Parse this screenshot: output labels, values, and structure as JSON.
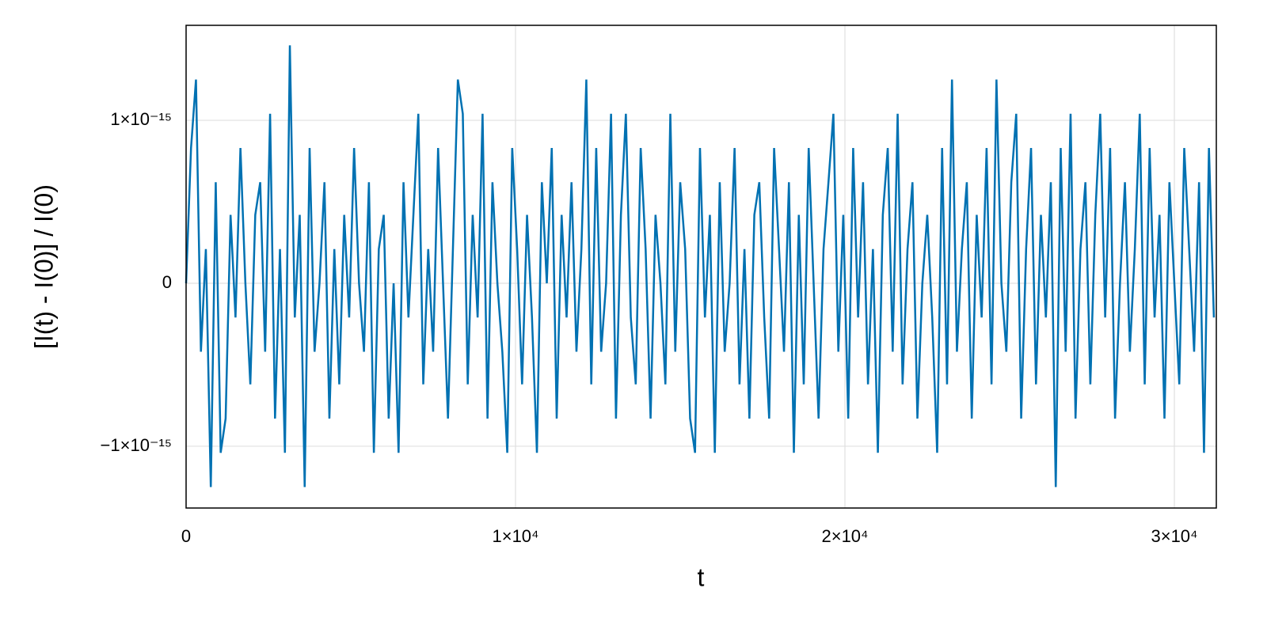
{
  "chart_data": {
    "type": "line",
    "xlabel": "t",
    "ylabel": "[I(t) - I(0)] / I(0)",
    "xlim": [
      0,
      31274
    ],
    "ylim": [
      -1.379e-15,
      1.583e-15
    ],
    "xticks": [
      0,
      {
        "value": 10000,
        "label": "1×10⁴"
      },
      {
        "value": 20000,
        "label": "2×10⁴"
      },
      {
        "value": 30000,
        "label": "3×10⁴"
      }
    ],
    "yticks": [
      {
        "value": -1e-15,
        "label": "−1×10⁻¹⁵"
      },
      0,
      {
        "value": 1e-15,
        "label": "1×10⁻¹⁵"
      }
    ],
    "grid": true,
    "x": [
      0,
      150,
      300,
      450,
      600,
      750,
      900,
      1050,
      1200,
      1350,
      1500,
      1650,
      1800,
      1950,
      2100,
      2250,
      2400,
      2550,
      2700,
      2850,
      3000,
      3150,
      3300,
      3450,
      3600,
      3750,
      3900,
      4050,
      4200,
      4350,
      4500,
      4650,
      4800,
      4950,
      5100,
      5250,
      5400,
      5550,
      5700,
      5850,
      6000,
      6150,
      6300,
      6450,
      6600,
      6750,
      6900,
      7050,
      7200,
      7350,
      7500,
      7650,
      7800,
      7950,
      8100,
      8250,
      8400,
      8550,
      8700,
      8850,
      9000,
      9150,
      9300,
      9450,
      9600,
      9750,
      9900,
      10050,
      10200,
      10350,
      10500,
      10650,
      10800,
      10950,
      11100,
      11250,
      11400,
      11550,
      11700,
      11850,
      12000,
      12150,
      12300,
      12450,
      12600,
      12750,
      12900,
      13050,
      13200,
      13350,
      13500,
      13650,
      13800,
      13950,
      14100,
      14250,
      14400,
      14550,
      14700,
      14850,
      15000,
      15150,
      15300,
      15450,
      15600,
      15750,
      15900,
      16050,
      16200,
      16350,
      16500,
      16650,
      16800,
      16950,
      17100,
      17250,
      17400,
      17550,
      17700,
      17850,
      18000,
      18150,
      18300,
      18450,
      18600,
      18750,
      18900,
      19050,
      19200,
      19350,
      19500,
      19650,
      19800,
      19950,
      20100,
      20250,
      20400,
      20550,
      20700,
      20850,
      21000,
      21150,
      21300,
      21450,
      21600,
      21750,
      21900,
      22050,
      22200,
      22350,
      22500,
      22650,
      22800,
      22950,
      23100,
      23250,
      23400,
      23550,
      23700,
      23850,
      24000,
      24150,
      24300,
      24450,
      24600,
      24750,
      24900,
      25050,
      25200,
      25350,
      25500,
      25650,
      25800,
      25950,
      26100,
      26250,
      26400,
      26550,
      26700,
      26850,
      27000,
      27150,
      27300,
      27450,
      27600,
      27750,
      27900,
      28050,
      28200,
      28350,
      28500,
      28650,
      28800,
      28950,
      29100,
      29250,
      29400,
      29550,
      29700,
      29850,
      30000,
      30150,
      30300,
      30450,
      30600,
      30750,
      30900,
      31050,
      31200
    ],
    "series": [
      {
        "color": "#0071b2",
        "values": [
          0,
          8.3e-16,
          1.25e-15,
          -4.2e-16,
          2.1e-16,
          -1.25e-15,
          6.2e-16,
          -1.04e-15,
          -8.3e-16,
          4.2e-16,
          -2.1e-16,
          8.3e-16,
          0,
          -6.2e-16,
          4.2e-16,
          6.2e-16,
          -4.2e-16,
          1.04e-15,
          -8.3e-16,
          2.1e-16,
          -1.04e-15,
          1.46e-15,
          -2.1e-16,
          4.2e-16,
          -1.25e-15,
          8.3e-16,
          -4.2e-16,
          0,
          6.2e-16,
          -8.3e-16,
          2.1e-16,
          -6.2e-16,
          4.2e-16,
          -2.1e-16,
          8.3e-16,
          0,
          -4.2e-16,
          6.2e-16,
          -1.04e-15,
          2.1e-16,
          4.2e-16,
          -8.3e-16,
          0,
          -1.04e-15,
          6.2e-16,
          -2.1e-16,
          4.2e-16,
          1.04e-15,
          -6.2e-16,
          2.1e-16,
          -4.2e-16,
          8.3e-16,
          0,
          -8.3e-16,
          2.1e-16,
          1.25e-15,
          1.04e-15,
          -6.2e-16,
          4.2e-16,
          -2.1e-16,
          1.04e-15,
          -8.3e-16,
          6.2e-16,
          0,
          -4.2e-16,
          -1.04e-15,
          8.3e-16,
          2.1e-16,
          -6.2e-16,
          4.2e-16,
          -2.1e-16,
          -1.04e-15,
          6.2e-16,
          0,
          8.3e-16,
          -8.3e-16,
          4.2e-16,
          -2.1e-16,
          6.2e-16,
          -4.2e-16,
          2.1e-16,
          1.25e-15,
          -6.2e-16,
          8.3e-16,
          -4.2e-16,
          0,
          1.04e-15,
          -8.3e-16,
          4.2e-16,
          1.04e-15,
          -2.1e-16,
          -6.2e-16,
          8.3e-16,
          2.1e-16,
          -8.3e-16,
          4.2e-16,
          0,
          -6.2e-16,
          1.04e-15,
          -4.2e-16,
          6.2e-16,
          2.1e-16,
          -8.3e-16,
          -1.04e-15,
          8.3e-16,
          -2.1e-16,
          4.2e-16,
          -1.04e-15,
          6.2e-16,
          -4.2e-16,
          0,
          8.3e-16,
          -6.2e-16,
          2.1e-16,
          -8.3e-16,
          4.2e-16,
          6.2e-16,
          -2.1e-16,
          -8.3e-16,
          8.3e-16,
          2.1e-16,
          -4.2e-16,
          6.2e-16,
          -1.04e-15,
          4.2e-16,
          -6.2e-16,
          8.3e-16,
          0,
          -8.3e-16,
          2.1e-16,
          6.2e-16,
          1.04e-15,
          -4.2e-16,
          4.2e-16,
          -8.3e-16,
          8.3e-16,
          -2.1e-16,
          6.2e-16,
          -6.2e-16,
          2.1e-16,
          -1.04e-15,
          4.2e-16,
          8.3e-16,
          -4.2e-16,
          1.04e-15,
          -6.2e-16,
          2.1e-16,
          6.2e-16,
          -8.3e-16,
          0,
          4.2e-16,
          -2.1e-16,
          -1.04e-15,
          8.3e-16,
          -6.2e-16,
          1.25e-15,
          -4.2e-16,
          2.1e-16,
          6.2e-16,
          -8.3e-16,
          4.2e-16,
          -2.1e-16,
          8.3e-16,
          -6.2e-16,
          1.25e-15,
          0,
          -4.2e-16,
          6.2e-16,
          1.04e-15,
          -8.3e-16,
          2.1e-16,
          8.3e-16,
          -6.2e-16,
          4.2e-16,
          -2.1e-16,
          6.2e-16,
          -1.25e-15,
          8.3e-16,
          -4.2e-16,
          1.04e-15,
          -8.3e-16,
          2.1e-16,
          6.2e-16,
          -6.2e-16,
          4.2e-16,
          1.04e-15,
          -2.1e-16,
          8.3e-16,
          -8.3e-16,
          0,
          6.2e-16,
          -4.2e-16,
          2.1e-16,
          1.04e-15,
          -6.2e-16,
          8.3e-16,
          -2.1e-16,
          4.2e-16,
          -8.3e-16,
          6.2e-16,
          0,
          -6.2e-16,
          8.3e-16,
          2.1e-16,
          -4.2e-16,
          6.2e-16,
          -1.04e-15,
          8.3e-16,
          -2.1e-16
        ]
      }
    ]
  }
}
